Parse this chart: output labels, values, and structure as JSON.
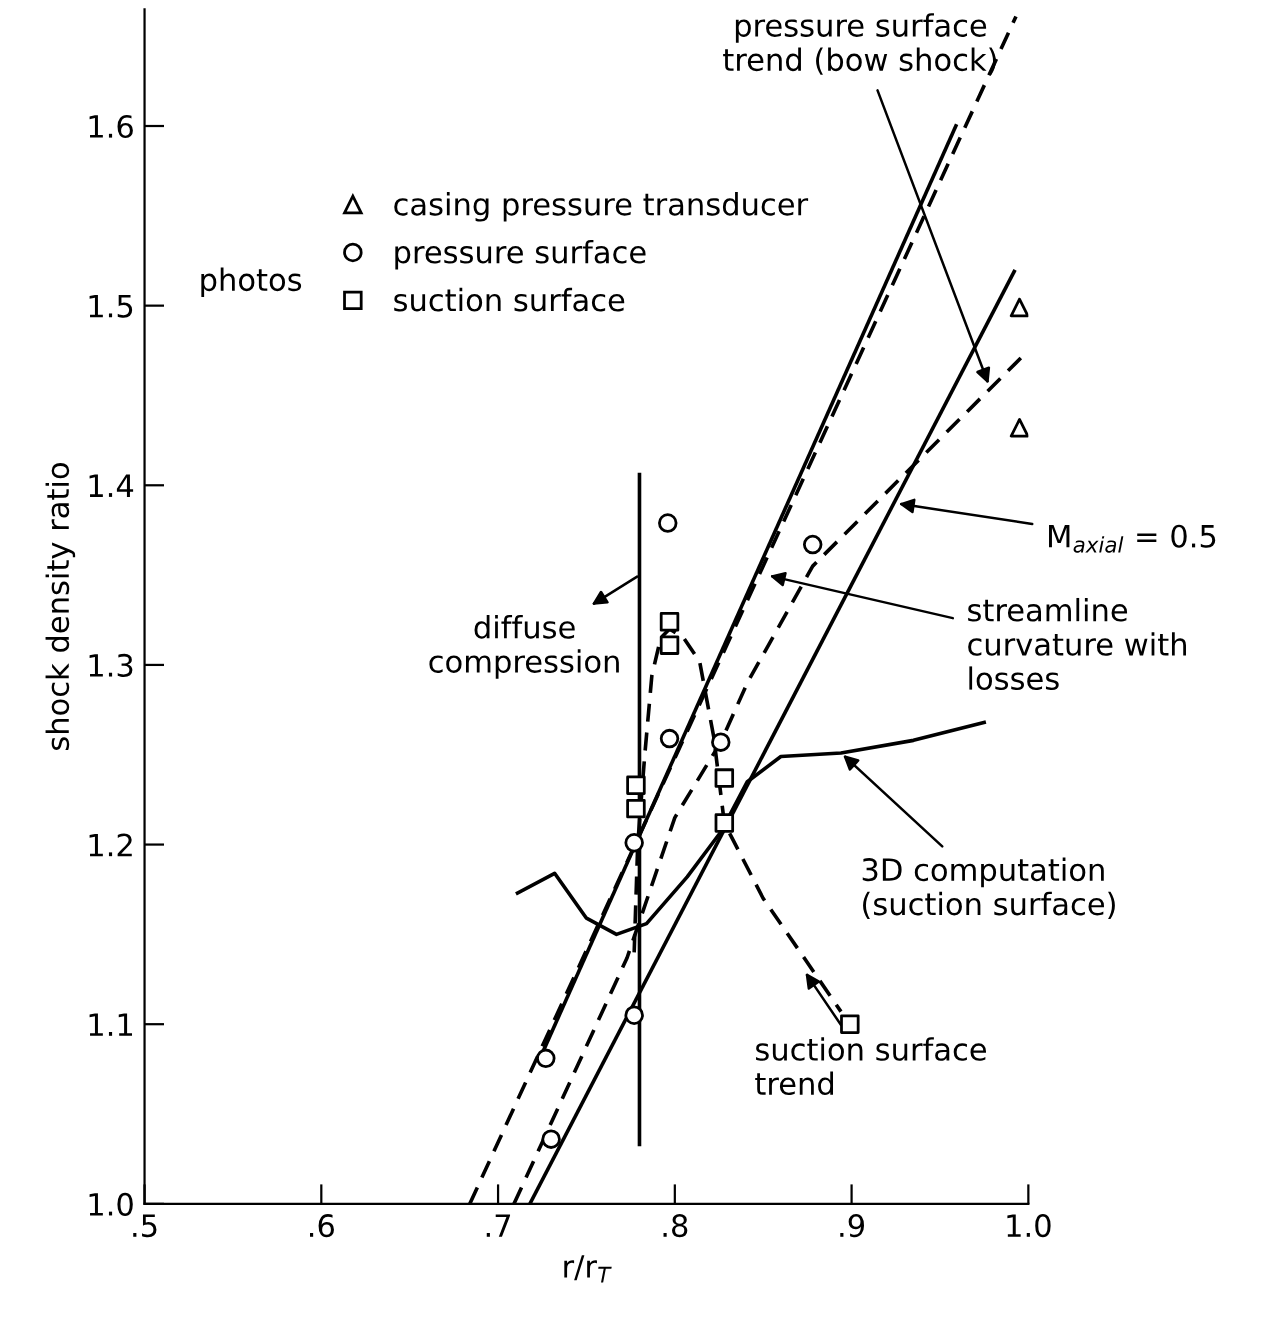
{
  "chart_data": {
    "type": "line",
    "xlabel": "r/r$_{T}$",
    "ylabel": "shock density ratio",
    "xlim": [
      0.5,
      1.0
    ],
    "ylim": [
      1.0,
      1.665
    ],
    "xticks": [
      {
        "value": 0.5,
        "label": ".5"
      },
      {
        "value": 0.6,
        "label": ".6"
      },
      {
        "value": 0.7,
        "label": ".7"
      },
      {
        "value": 0.8,
        "label": ".8"
      },
      {
        "value": 0.9,
        "label": ".9"
      },
      {
        "value": 1.0,
        "label": "1.0"
      }
    ],
    "yticks": [
      {
        "value": 1.0,
        "label": "1.0"
      },
      {
        "value": 1.1,
        "label": "1.1"
      },
      {
        "value": 1.2,
        "label": "1.2"
      },
      {
        "value": 1.3,
        "label": "1.3"
      },
      {
        "value": 1.4,
        "label": "1.4"
      },
      {
        "value": 1.5,
        "label": "1.5"
      },
      {
        "value": 1.6,
        "label": "1.6"
      }
    ],
    "grid": false,
    "legend": "top left",
    "series": [
      {
        "type": "scatter",
        "name": "casing pressure transducer",
        "marker": "triangle",
        "color": "#000000",
        "x": [
          0.995,
          0.995
        ],
        "values": [
          1.499,
          1.432
        ]
      },
      {
        "type": "scatter",
        "name": "pressure surface",
        "marker": "circle",
        "color": "#000000",
        "x": [
          0.727,
          0.73,
          0.777,
          0.777,
          0.797,
          0.796,
          0.826,
          0.878
        ],
        "values": [
          1.081,
          1.036,
          1.105,
          1.201,
          1.259,
          1.379,
          1.257,
          1.367
        ]
      },
      {
        "type": "scatter",
        "name": "suction surface",
        "marker": "square",
        "color": "#000000",
        "x": [
          0.778,
          0.778,
          0.797,
          0.797,
          0.828,
          0.828,
          0.899
        ],
        "values": [
          1.22,
          1.233,
          1.311,
          1.324,
          1.237,
          1.212,
          1.1
        ]
      },
      {
        "line_style": "dashed",
        "color": "#000000",
        "x": [
          0.684,
          0.993
        ],
        "values": [
          1.0,
          1.661
        ]
      },
      {
        "line_style": "solid",
        "color": "#000000",
        "x": [
          0.718,
          0.992
        ],
        "values": [
          1.0,
          1.519
        ]
      },
      {
        "line_style": "solid",
        "color": "#000000",
        "x": [
          0.726,
          0.959
        ],
        "values": [
          1.086,
          1.6
        ]
      },
      {
        "line_style": "dashed",
        "color": "#000000",
        "x": [
          0.709,
          0.773,
          0.8,
          0.826,
          0.841,
          0.878,
          0.942,
          1.0
        ],
        "values": [
          1.0,
          1.137,
          1.215,
          1.257,
          1.29,
          1.355,
          1.418,
          1.475
        ]
      },
      {
        "line_style": "dashed",
        "color": "#000000",
        "x": [
          0.777,
          0.779,
          0.783,
          0.787,
          0.792,
          0.797,
          0.805,
          0.814,
          0.822,
          0.828,
          0.85,
          0.871,
          0.894
        ],
        "values": [
          1.14,
          1.2,
          1.25,
          1.294,
          1.315,
          1.32,
          1.315,
          1.302,
          1.26,
          1.212,
          1.17,
          1.14,
          1.107
        ]
      },
      {
        "line_style": "solid",
        "color": "#000000",
        "x": [
          0.711,
          0.732,
          0.75,
          0.767,
          0.784,
          0.807,
          0.826,
          0.841,
          0.86,
          0.894,
          0.935,
          0.975
        ],
        "values": [
          1.173,
          1.184,
          1.159,
          1.15,
          1.156,
          1.182,
          1.207,
          1.235,
          1.249,
          1.251,
          1.258,
          1.268
        ]
      },
      {
        "line_style": "solid",
        "color": "#000000",
        "x": [
          0.78,
          0.78
        ],
        "values": [
          1.033,
          1.406
        ]
      }
    ],
    "annotations": [
      {
        "text": "pressure surface\ntrend (bow shock)",
        "x": 0.978,
        "y": 1.455
      },
      {
        "text": "diffuse\ncompression",
        "x": 0.78,
        "y": 1.35
      },
      {
        "text": "M$_{axial}$ = 0.5",
        "x": 0.925,
        "y": 1.39
      },
      {
        "text": "streamline\ncurvature with\nlosses",
        "x": 0.852,
        "y": 1.35
      },
      {
        "text": "3D computation\n(suction surface)",
        "x": 0.894,
        "y": 1.251
      },
      {
        "text": "suction surface\ntrend",
        "x": 0.873,
        "y": 1.13
      },
      "photos"
    ]
  }
}
